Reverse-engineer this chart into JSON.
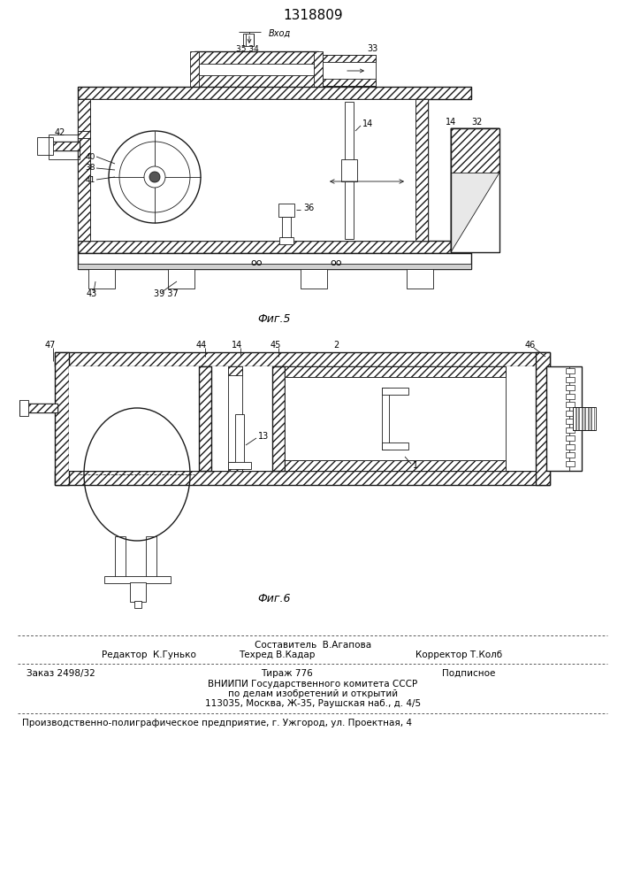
{
  "patent_number": "1318809",
  "bg_color": "#f5f5f0",
  "line_color": "#1a1a1a",
  "fig_width": 7.07,
  "fig_height": 10.0,
  "dpi": 100,
  "top_text": "1318809",
  "fig5_label": "Фиг.5",
  "fig6_label": "Фиг.6",
  "vhod_label": "Вход",
  "label_42": "42",
  "label_33": "33",
  "label_36": "36",
  "label_40": "40",
  "label_38": "38",
  "label_41": "41",
  "label_43": "43",
  "label_3937": "39 37",
  "label_14": "14",
  "label_32": "32",
  "label_3534": "35 34",
  "label_47": "47",
  "label_44": "44",
  "label_14b": "14",
  "label_45": "45",
  "label_2": "2",
  "label_46": "46",
  "label_13": "13",
  "label_1": "1",
  "footer_editor": "Редактор  К.Гунько",
  "footer_sostavitel": "Составитель  В.Агапова",
  "footer_tehred": "Техред В.Кадар",
  "footer_korrektor": "Корректор Т.Колб",
  "footer_zakaz": "Заказ 2498/32",
  "footer_tirazh": "Тираж 776",
  "footer_podpisnoe": "Подписное",
  "footer_vniipii1": "ВНИИПИ Государственного комитета СССР",
  "footer_vniipii2": "по делам изобретений и открытий",
  "footer_vniipii3": "113035, Москва, Ж-35, Раушская наб., д. 4/5",
  "footer_production": "Производственно-полиграфическое предприятие, г. Ужгород, ул. Проектная, 4"
}
